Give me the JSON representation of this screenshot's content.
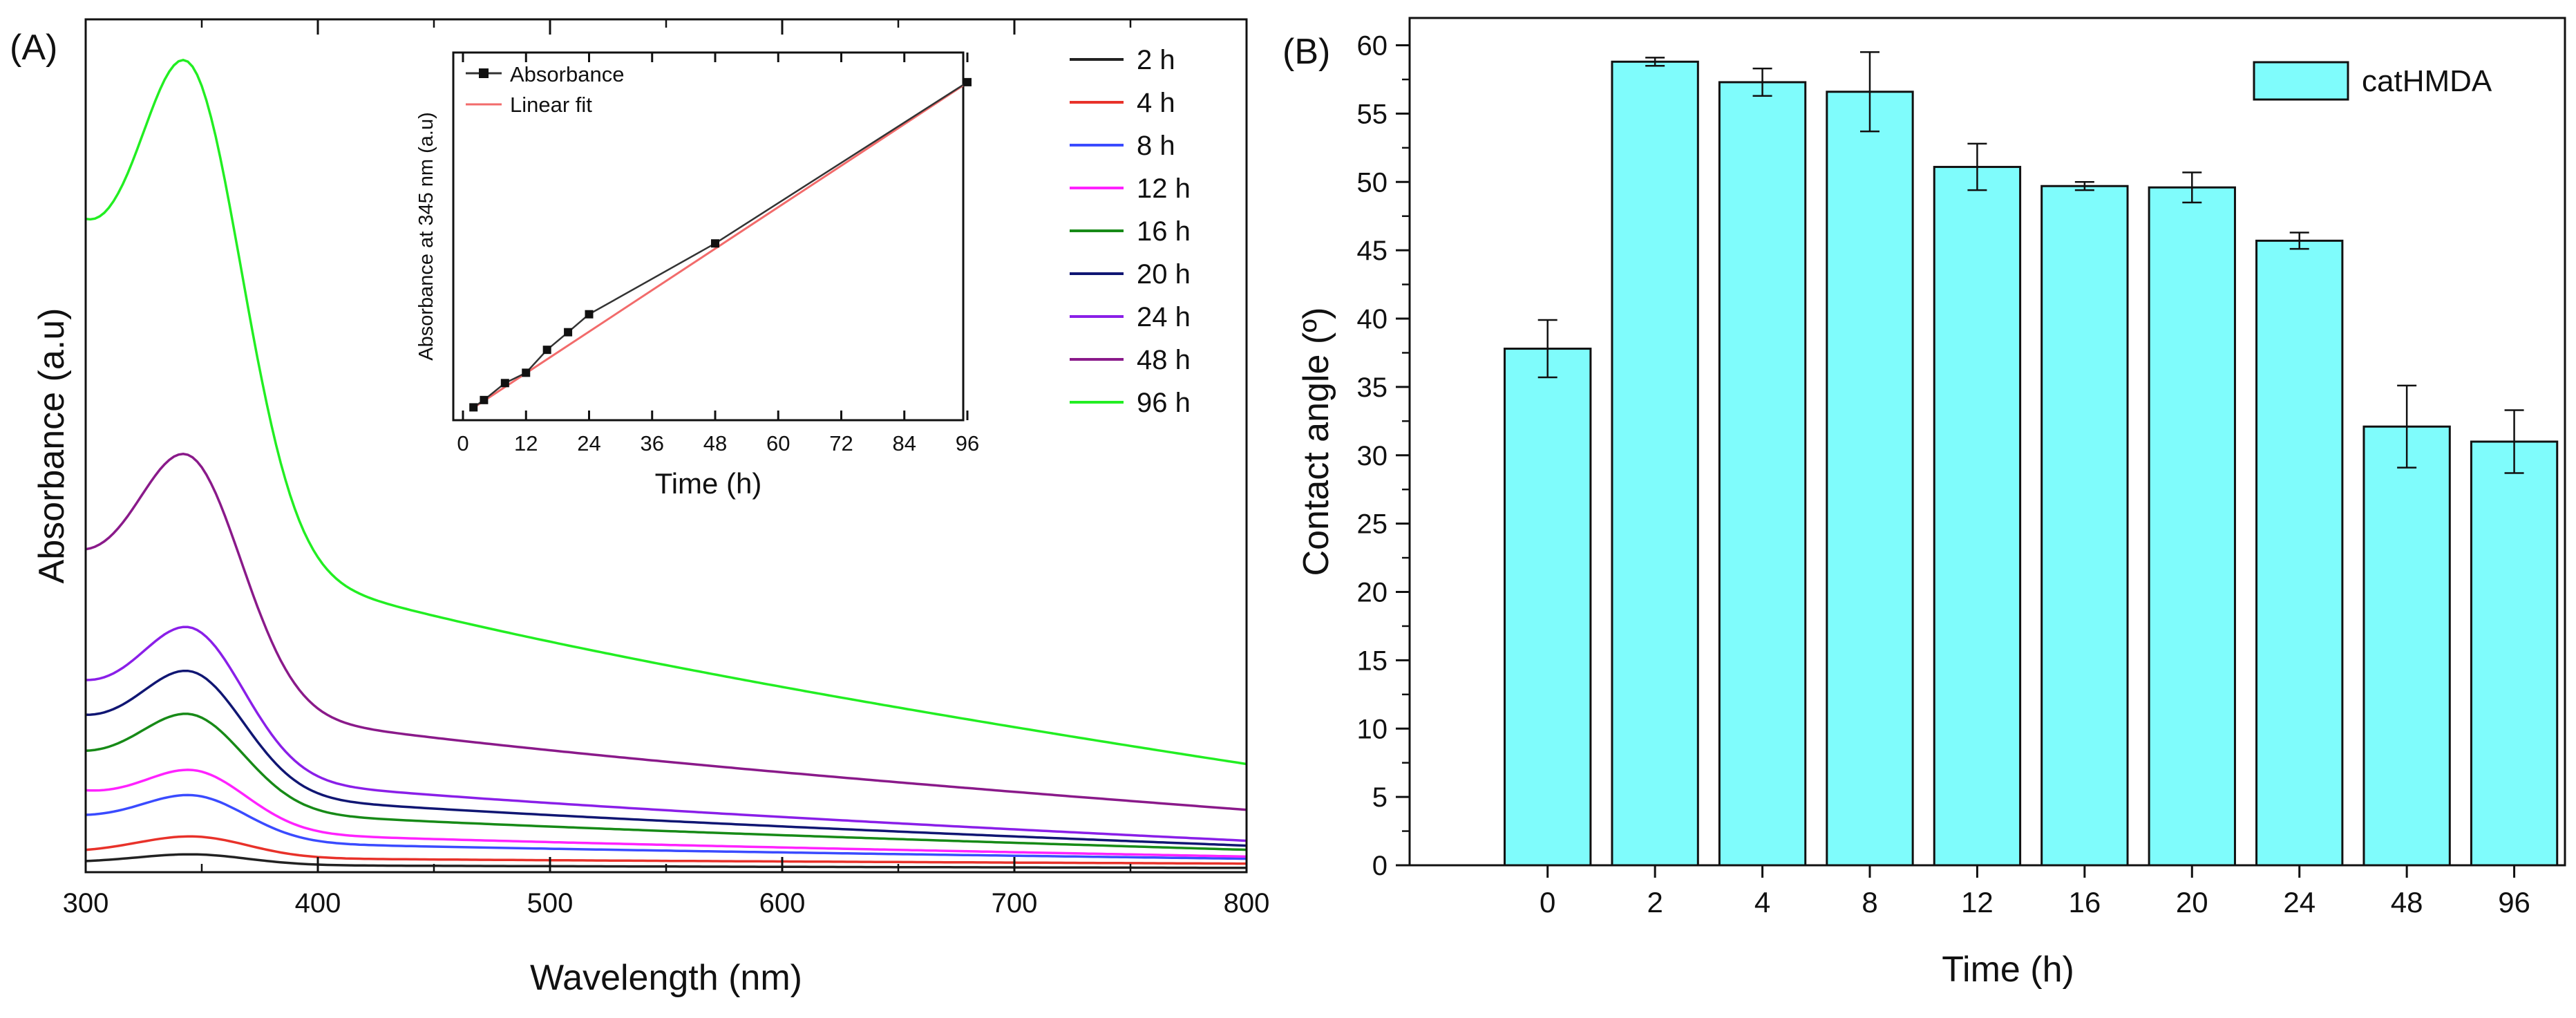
{
  "chart_data": [
    {
      "panel": "A",
      "panel_label": "(A)",
      "type": "line",
      "title": "",
      "xlabel": "Wavelength (nm)",
      "ylabel": "Absorbance (a.u)",
      "xlim": [
        300,
        800
      ],
      "ylim": [
        0,
        10.5
      ],
      "x_ticks": [
        300,
        400,
        500,
        600,
        700,
        800
      ],
      "series": [
        {
          "name": "2 h",
          "color": "#222222",
          "peak_x": 345,
          "peak": 0.22,
          "base_start": 0.12,
          "tail": 0.05
        },
        {
          "name": "4 h",
          "color": "#e8322a",
          "peak_x": 345,
          "peak": 0.44,
          "base_start": 0.24,
          "tail": 0.1
        },
        {
          "name": "8 h",
          "color": "#3a4bff",
          "peak_x": 344,
          "peak": 0.95,
          "base_start": 0.65,
          "tail": 0.15
        },
        {
          "name": "12 h",
          "color": "#ff22ff",
          "peak_x": 344,
          "peak": 1.26,
          "base_start": 0.95,
          "tail": 0.17
        },
        {
          "name": "16 h",
          "color": "#178a17",
          "peak_x": 343,
          "peak": 1.95,
          "base_start": 1.38,
          "tail": 0.24
        },
        {
          "name": "20 h",
          "color": "#101673",
          "peak_x": 343,
          "peak": 2.48,
          "base_start": 1.8,
          "tail": 0.28
        },
        {
          "name": "24 h",
          "color": "#8a1fe8",
          "peak_x": 343,
          "peak": 3.02,
          "base_start": 2.2,
          "tail": 0.33
        },
        {
          "name": "48 h",
          "color": "#8a1a8a",
          "peak_x": 342,
          "peak": 5.15,
          "base_start": 3.65,
          "tail": 0.68
        },
        {
          "name": "96 h",
          "color": "#22ee22",
          "peak_x": 342,
          "peak": 10.0,
          "base_start": 7.5,
          "tail": 1.15
        }
      ],
      "inset": {
        "type": "scatter+line",
        "xlabel": "Time (h)",
        "ylabel": "Absorbance at 345 nm (a.u)",
        "xlim": [
          0,
          96
        ],
        "x_ticks": [
          0,
          12,
          24,
          36,
          48,
          60,
          72,
          84,
          96
        ],
        "legend": [
          {
            "name": "Absorbance",
            "color": "#333333"
          },
          {
            "name": "Linear fit",
            "color": "#f26b6b"
          }
        ],
        "x": [
          2,
          4,
          8,
          12,
          16,
          20,
          24,
          48,
          96
        ],
        "y": [
          0.22,
          0.44,
          0.95,
          1.26,
          1.95,
          2.48,
          3.02,
          5.15,
          10.0
        ],
        "fit": {
          "slope": 0.104,
          "intercept": 0.0
        }
      }
    },
    {
      "panel": "B",
      "panel_label": "(B)",
      "type": "bar",
      "title": "",
      "xlabel": "Time (h)",
      "ylabel": "Contact angle (º)",
      "ylim": [
        0,
        62
      ],
      "y_ticks": [
        0,
        5,
        10,
        15,
        20,
        25,
        30,
        35,
        40,
        45,
        50,
        55,
        60
      ],
      "legend": "catHMDA",
      "bar_color": "#7ffcfc",
      "categories": [
        "0",
        "2",
        "4",
        "8",
        "12",
        "16",
        "20",
        "24",
        "48",
        "96"
      ],
      "values": [
        37.8,
        58.8,
        57.3,
        56.6,
        51.1,
        49.7,
        49.6,
        45.7,
        32.1,
        31.0
      ],
      "errors": [
        2.1,
        0.3,
        1.0,
        2.9,
        1.7,
        0.3,
        1.1,
        0.6,
        3.0,
        2.3
      ]
    }
  ]
}
